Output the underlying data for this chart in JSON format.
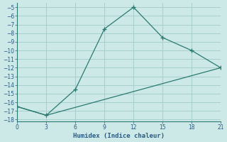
{
  "xlabel": "Humidex (Indice chaleur)",
  "line1_x": [
    0,
    3,
    6,
    9,
    12,
    15,
    18,
    21
  ],
  "line1_y": [
    -16.5,
    -17.5,
    -14.5,
    -7.5,
    -5.0,
    -8.5,
    -10.0,
    -12.0
  ],
  "line2_x": [
    0,
    3,
    21
  ],
  "line2_y": [
    -16.5,
    -17.5,
    -12.0
  ],
  "line_color": "#2a7a70",
  "bg_color": "#cce9e8",
  "grid_color": "#a8cece",
  "text_color": "#2a5a80",
  "xlim": [
    0,
    21
  ],
  "ylim": [
    -18.2,
    -4.5
  ],
  "xticks": [
    0,
    3,
    6,
    9,
    12,
    15,
    18,
    21
  ],
  "yticks": [
    -5,
    -6,
    -7,
    -8,
    -9,
    -10,
    -11,
    -12,
    -13,
    -14,
    -15,
    -16,
    -17,
    -18
  ]
}
